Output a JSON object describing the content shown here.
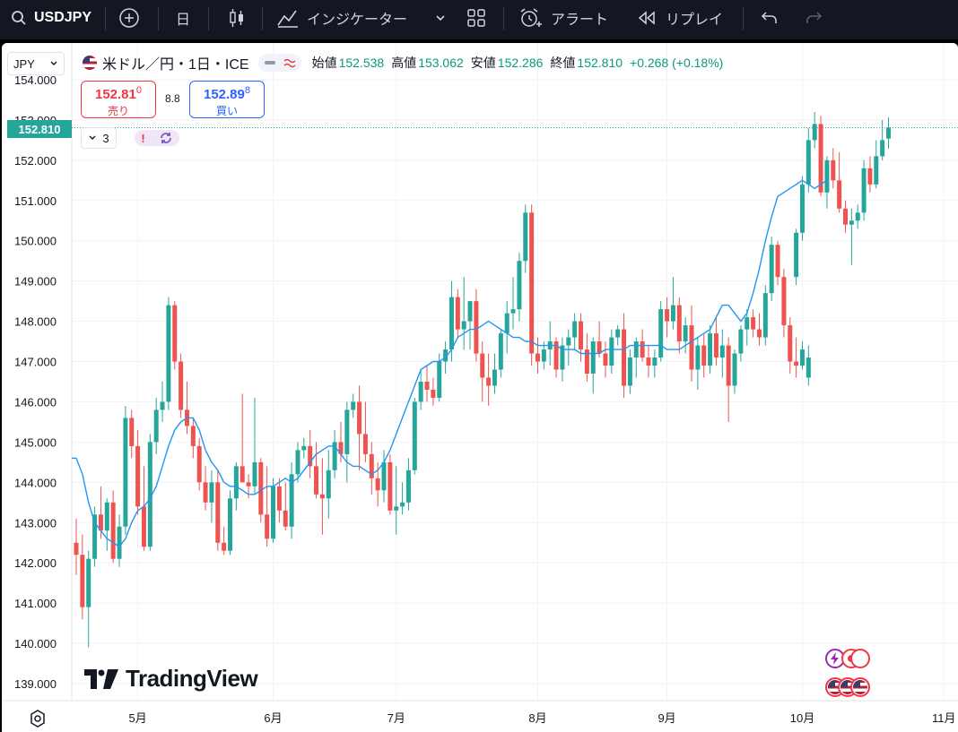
{
  "toolbar": {
    "symbol": "USDJPY",
    "interval": "日",
    "indicators": "インジケーター",
    "alert": "アラート",
    "replay": "リプレイ"
  },
  "currency_selector": "JPY",
  "legend": {
    "title": "米ドル／円・1日・ICE",
    "open_label": "始値",
    "open": "152.538",
    "high_label": "高値",
    "high": "153.062",
    "low_label": "安値",
    "low": "152.286",
    "close_label": "終値",
    "close": "152.810",
    "change": "+0.268 (+0.18%)"
  },
  "trade": {
    "sell_price": "152.81",
    "sell_sup": "0",
    "sell_label": "売り",
    "spread": "8.8",
    "buy_price": "152.89",
    "buy_sup": "8",
    "buy_label": "買い"
  },
  "indicator_count": "3",
  "last_price_tag": "152.810",
  "branding": "TradingView",
  "colors": {
    "up": "#26a69a",
    "down": "#ef5350",
    "ma": "#2196f3",
    "toolbar_bg": "#131722"
  },
  "chart_data": {
    "type": "candlestick",
    "title": "米ドル／円・1日・ICE",
    "ylim": [
      138.6,
      154.3
    ],
    "y_ticks": [
      139,
      140,
      141,
      142,
      143,
      144,
      145,
      146,
      147,
      148,
      149,
      150,
      151,
      152,
      153,
      154
    ],
    "y_tick_labels": [
      "139.000",
      "140.000",
      "141.000",
      "142.000",
      "143.000",
      "144.000",
      "145.000",
      "146.000",
      "147.000",
      "148.000",
      "149.000",
      "150.000",
      "151.000",
      "152.000",
      "153.000",
      "154.000"
    ],
    "x_labels": [
      {
        "label": "5月",
        "index": 10
      },
      {
        "label": "6月",
        "index": 32
      },
      {
        "label": "7月",
        "index": 52
      },
      {
        "label": "8月",
        "index": 75
      },
      {
        "label": "9月",
        "index": 96
      },
      {
        "label": "10月",
        "index": 118
      },
      {
        "label": "11月",
        "index": 141
      }
    ],
    "last_price": 152.81,
    "ohlc": [
      [
        142.5,
        143.1,
        141.7,
        142.2
      ],
      [
        142.2,
        142.7,
        140.6,
        140.9
      ],
      [
        140.9,
        142.3,
        139.9,
        142.1
      ],
      [
        142.1,
        143.4,
        141.9,
        143.2
      ],
      [
        143.2,
        143.9,
        142.6,
        142.8
      ],
      [
        142.8,
        143.6,
        142.3,
        143.5
      ],
      [
        143.5,
        143.8,
        142.0,
        142.1
      ],
      [
        142.1,
        143.2,
        141.9,
        142.9
      ],
      [
        142.9,
        145.9,
        142.7,
        145.6
      ],
      [
        145.6,
        145.8,
        144.6,
        144.9
      ],
      [
        144.9,
        145.3,
        143.2,
        143.4
      ],
      [
        143.4,
        144.4,
        142.3,
        142.4
      ],
      [
        142.4,
        145.2,
        142.3,
        145.0
      ],
      [
        145.0,
        146.1,
        144.7,
        145.8
      ],
      [
        145.8,
        146.5,
        145.5,
        146.0
      ],
      [
        146.0,
        148.6,
        145.8,
        148.4
      ],
      [
        148.4,
        148.5,
        146.8,
        147.0
      ],
      [
        147.0,
        147.2,
        145.6,
        145.8
      ],
      [
        145.8,
        146.5,
        145.2,
        145.4
      ],
      [
        145.4,
        145.6,
        144.6,
        144.9
      ],
      [
        144.9,
        145.1,
        143.8,
        144.0
      ],
      [
        144.0,
        144.4,
        143.3,
        143.5
      ],
      [
        143.5,
        144.3,
        143.0,
        144.0
      ],
      [
        144.0,
        144.3,
        142.3,
        142.5
      ],
      [
        142.5,
        142.9,
        142.2,
        142.3
      ],
      [
        142.3,
        143.8,
        142.2,
        143.6
      ],
      [
        143.6,
        144.5,
        143.3,
        144.4
      ],
      [
        144.4,
        146.2,
        144.0,
        144.0
      ],
      [
        144.0,
        144.2,
        143.6,
        143.9
      ],
      [
        143.9,
        146.1,
        143.7,
        144.5
      ],
      [
        144.5,
        144.6,
        143.0,
        143.2
      ],
      [
        143.2,
        144.4,
        142.4,
        142.6
      ],
      [
        142.6,
        144.1,
        142.5,
        143.9
      ],
      [
        143.9,
        144.1,
        143.0,
        143.3
      ],
      [
        143.3,
        144.0,
        142.8,
        142.9
      ],
      [
        142.9,
        144.5,
        142.6,
        144.2
      ],
      [
        144.2,
        145.0,
        144.0,
        144.8
      ],
      [
        144.8,
        145.1,
        144.6,
        144.9
      ],
      [
        144.9,
        145.3,
        144.1,
        144.4
      ],
      [
        144.4,
        145.0,
        143.6,
        143.7
      ],
      [
        143.7,
        144.6,
        142.7,
        143.6
      ],
      [
        143.6,
        144.8,
        143.1,
        144.3
      ],
      [
        144.3,
        145.3,
        144.1,
        145.0
      ],
      [
        145.0,
        145.5,
        144.5,
        144.7
      ],
      [
        144.7,
        146.0,
        144.0,
        145.8
      ],
      [
        145.8,
        146.2,
        145.6,
        146.0
      ],
      [
        146.0,
        146.4,
        144.3,
        145.2
      ],
      [
        145.2,
        146.0,
        144.5,
        144.7
      ],
      [
        144.7,
        145.0,
        143.7,
        144.1
      ],
      [
        144.1,
        144.5,
        143.4,
        143.8
      ],
      [
        143.8,
        144.8,
        143.5,
        144.5
      ],
      [
        144.5,
        144.7,
        143.2,
        143.3
      ],
      [
        143.3,
        144.4,
        142.7,
        143.4
      ],
      [
        143.4,
        144.0,
        143.2,
        143.5
      ],
      [
        143.5,
        144.6,
        143.3,
        144.3
      ],
      [
        144.3,
        146.1,
        144.2,
        146.0
      ],
      [
        146.0,
        146.8,
        145.8,
        146.5
      ],
      [
        146.5,
        146.9,
        146.0,
        146.3
      ],
      [
        146.3,
        146.6,
        145.9,
        146.1
      ],
      [
        146.1,
        147.2,
        146.0,
        147.0
      ],
      [
        147.0,
        147.5,
        146.7,
        147.3
      ],
      [
        147.3,
        149.0,
        147.0,
        148.6
      ],
      [
        148.6,
        148.8,
        147.6,
        147.8
      ],
      [
        147.8,
        149.1,
        147.3,
        148.0
      ],
      [
        148.0,
        148.5,
        147.3,
        148.5
      ],
      [
        148.5,
        148.8,
        147.0,
        147.2
      ],
      [
        147.2,
        147.5,
        146.0,
        146.6
      ],
      [
        146.6,
        147.2,
        145.9,
        146.4
      ],
      [
        146.4,
        147.2,
        146.2,
        146.8
      ],
      [
        146.8,
        147.8,
        146.6,
        147.7
      ],
      [
        147.7,
        148.5,
        147.2,
        148.2
      ],
      [
        148.2,
        149.1,
        147.8,
        148.3
      ],
      [
        148.3,
        149.7,
        148.0,
        149.5
      ],
      [
        149.5,
        150.9,
        149.2,
        150.7
      ],
      [
        150.7,
        150.9,
        146.9,
        147.2
      ],
      [
        147.2,
        147.6,
        146.7,
        147.0
      ],
      [
        147.0,
        147.5,
        146.8,
        147.3
      ],
      [
        147.3,
        148.0,
        146.9,
        147.5
      ],
      [
        147.5,
        147.6,
        146.6,
        146.8
      ],
      [
        146.8,
        147.6,
        146.5,
        147.4
      ],
      [
        147.4,
        147.8,
        146.9,
        147.6
      ],
      [
        147.6,
        148.2,
        147.3,
        148.0
      ],
      [
        148.0,
        148.2,
        147.0,
        147.3
      ],
      [
        147.3,
        147.7,
        146.5,
        146.7
      ],
      [
        146.7,
        147.6,
        146.2,
        147.5
      ],
      [
        147.5,
        148.0,
        147.1,
        147.2
      ],
      [
        147.2,
        147.5,
        146.6,
        146.9
      ],
      [
        146.9,
        147.8,
        146.7,
        147.6
      ],
      [
        147.6,
        147.9,
        147.4,
        147.8
      ],
      [
        147.8,
        148.2,
        146.1,
        146.4
      ],
      [
        146.4,
        147.3,
        146.2,
        147.1
      ],
      [
        147.1,
        147.6,
        146.6,
        147.5
      ],
      [
        147.5,
        147.8,
        147.0,
        147.1
      ],
      [
        147.1,
        147.4,
        146.6,
        146.9
      ],
      [
        146.9,
        147.3,
        146.6,
        147.1
      ],
      [
        147.1,
        148.5,
        147.0,
        148.3
      ],
      [
        148.3,
        148.6,
        147.6,
        148.0
      ],
      [
        148.0,
        149.1,
        147.8,
        148.4
      ],
      [
        148.4,
        148.6,
        147.2,
        147.5
      ],
      [
        147.5,
        148.1,
        147.2,
        147.9
      ],
      [
        147.9,
        148.4,
        146.5,
        146.8
      ],
      [
        146.8,
        147.6,
        146.3,
        147.4
      ],
      [
        147.4,
        147.7,
        146.6,
        146.9
      ],
      [
        146.9,
        147.9,
        146.7,
        147.7
      ],
      [
        147.7,
        148.1,
        146.9,
        147.1
      ],
      [
        147.1,
        147.8,
        146.6,
        147.4
      ],
      [
        147.4,
        147.6,
        145.5,
        146.4
      ],
      [
        146.4,
        147.3,
        146.2,
        147.2
      ],
      [
        147.2,
        147.9,
        147.0,
        147.8
      ],
      [
        147.8,
        148.3,
        147.4,
        148.1
      ],
      [
        148.1,
        148.3,
        147.6,
        147.8
      ],
      [
        147.8,
        148.2,
        147.4,
        147.6
      ],
      [
        147.6,
        148.9,
        147.4,
        148.7
      ],
      [
        148.7,
        150.1,
        148.5,
        149.9
      ],
      [
        149.9,
        150.0,
        148.9,
        149.1
      ],
      [
        149.1,
        149.3,
        147.6,
        147.9
      ],
      [
        147.9,
        148.1,
        146.7,
        147.0
      ],
      [
        147.0,
        147.6,
        146.6,
        146.9
      ],
      [
        146.9,
        147.5,
        146.8,
        147.3
      ],
      [
        146.6,
        147.4,
        146.4,
        147.1
      ]
    ],
    "late_ohlc": [
      [
        149.1,
        150.3,
        148.9,
        150.2
      ],
      [
        150.2,
        151.6,
        150.0,
        151.4
      ],
      [
        151.4,
        152.8,
        151.2,
        152.5
      ],
      [
        152.5,
        153.2,
        152.3,
        152.9
      ],
      [
        152.9,
        153.1,
        151.1,
        151.2
      ],
      [
        151.2,
        152.1,
        150.8,
        152.0
      ],
      [
        152.0,
        152.3,
        151.3,
        151.5
      ],
      [
        151.5,
        152.2,
        150.7,
        150.8
      ],
      [
        150.8,
        151.0,
        150.2,
        150.4
      ],
      [
        150.4,
        150.8,
        149.4,
        150.5
      ],
      [
        150.5,
        150.9,
        150.3,
        150.7
      ],
      [
        150.7,
        152.0,
        150.5,
        151.8
      ],
      [
        151.8,
        152.1,
        151.2,
        151.4
      ],
      [
        151.4,
        152.5,
        151.3,
        152.1
      ],
      [
        152.1,
        153.0,
        152.0,
        152.5
      ],
      [
        152.538,
        153.062,
        152.286,
        152.81
      ]
    ],
    "ma": [
      144.6,
      144.2,
      143.5,
      143.0,
      142.8,
      142.6,
      142.5,
      142.4,
      142.6,
      143.0,
      143.3,
      143.4,
      143.6,
      143.9,
      144.4,
      144.9,
      145.3,
      145.5,
      145.6,
      145.6,
      145.3,
      144.8,
      144.5,
      144.3,
      144.0,
      143.9,
      143.9,
      143.8,
      143.7,
      143.7,
      143.8,
      143.9,
      143.9,
      144.0,
      144.1,
      144.0,
      144.1,
      144.3,
      144.5,
      144.7,
      144.8,
      144.9,
      144.9,
      144.7,
      144.5,
      144.4,
      144.4,
      144.3,
      144.2,
      144.3,
      144.5,
      144.8,
      145.2,
      145.6,
      146.0,
      146.4,
      146.8,
      146.9,
      147.0,
      147.0,
      147.1,
      147.3,
      147.6,
      147.7,
      147.8,
      147.8,
      147.9,
      148.0,
      147.9,
      147.8,
      147.7,
      147.6,
      147.6,
      147.5,
      147.5,
      147.4,
      147.4,
      147.4,
      147.4,
      147.3,
      147.3,
      147.3,
      147.2,
      147.2,
      147.2,
      147.2,
      147.3,
      147.3,
      147.3,
      147.3,
      147.4,
      147.4,
      147.4,
      147.4,
      147.4,
      147.4,
      147.3,
      147.3,
      147.3,
      147.4,
      147.5,
      147.6,
      147.7,
      147.8,
      148.1,
      148.4,
      148.4,
      148.2,
      148.0,
      148.2,
      148.7,
      149.3,
      150.0,
      150.6,
      151.1,
      151.4,
      151.5,
      151.4,
      151.3,
      151.4,
      151.5
    ]
  },
  "ma_late_start_index": 115
}
